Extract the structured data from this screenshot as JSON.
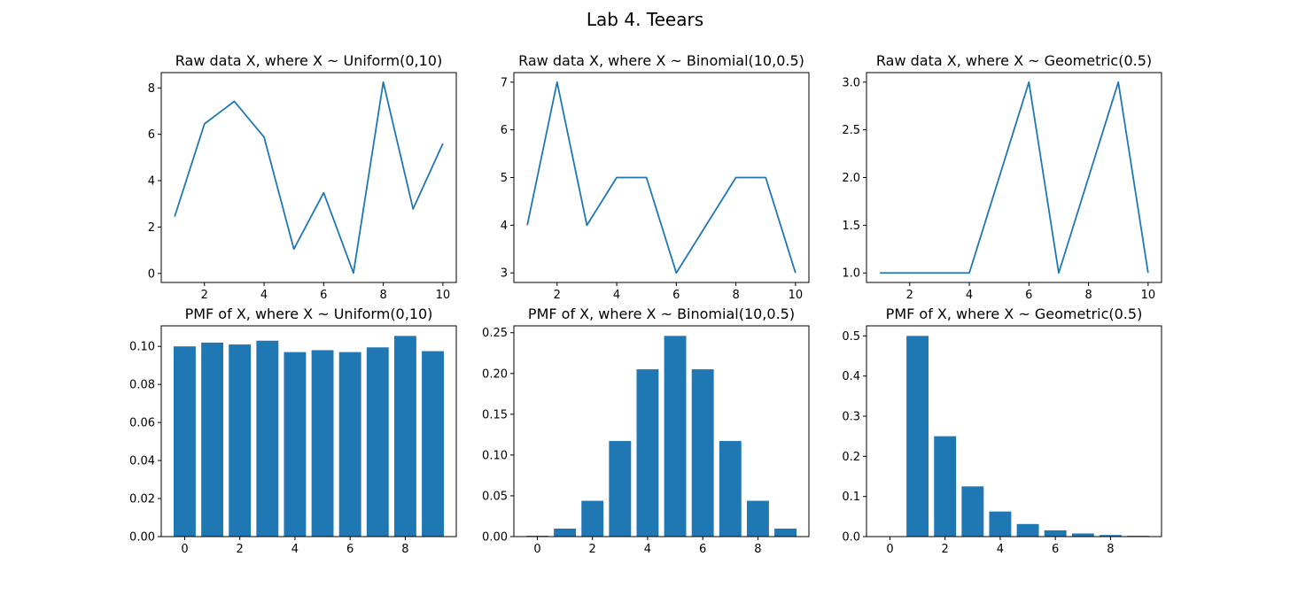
{
  "figure": {
    "suptitle": "Lab 4. Teears"
  },
  "colors": {
    "series": "#1f77b4",
    "axis": "#000000",
    "background": "#ffffff"
  },
  "chart_data": [
    {
      "type": "line",
      "title": "Raw data X, where X ~ Uniform(0,10)",
      "x": [
        1,
        2,
        3,
        4,
        5,
        6,
        7,
        8,
        9,
        10
      ],
      "y": [
        2.45,
        6.45,
        7.42,
        5.88,
        1.05,
        3.48,
        0.02,
        8.25,
        2.78,
        5.6
      ],
      "xlim": [
        0.55,
        10.45
      ],
      "ylim": [
        -0.39,
        8.66
      ],
      "xticks": [
        2,
        4,
        6,
        8,
        10
      ],
      "xtick_labels": [
        "2",
        "4",
        "6",
        "8",
        "10"
      ],
      "yticks": [
        0,
        2,
        4,
        6,
        8
      ],
      "ytick_labels": [
        "0",
        "2",
        "4",
        "6",
        "8"
      ],
      "xlabel": "",
      "ylabel": "",
      "grid": false
    },
    {
      "type": "line",
      "title": "Raw data X, where X ~ Binomial(10,0.5)",
      "x": [
        1,
        2,
        3,
        4,
        5,
        6,
        7,
        8,
        9,
        10
      ],
      "y": [
        4,
        7,
        4,
        5,
        5,
        3,
        4,
        5,
        5,
        3
      ],
      "xlim": [
        0.55,
        10.45
      ],
      "ylim": [
        2.8,
        7.2
      ],
      "xticks": [
        2,
        4,
        6,
        8,
        10
      ],
      "xtick_labels": [
        "2",
        "4",
        "6",
        "8",
        "10"
      ],
      "yticks": [
        3,
        4,
        5,
        6,
        7
      ],
      "ytick_labels": [
        "3",
        "4",
        "5",
        "6",
        "7"
      ],
      "xlabel": "",
      "ylabel": "",
      "grid": false
    },
    {
      "type": "line",
      "title": "Raw data X, where X ~ Geometric(0.5)",
      "x": [
        1,
        2,
        3,
        4,
        5,
        6,
        7,
        8,
        9,
        10
      ],
      "y": [
        1,
        1,
        1,
        1,
        2,
        3,
        1,
        2,
        3,
        1
      ],
      "xlim": [
        0.55,
        10.45
      ],
      "ylim": [
        0.9,
        3.1
      ],
      "xticks": [
        2,
        4,
        6,
        8,
        10
      ],
      "xtick_labels": [
        "2",
        "4",
        "6",
        "8",
        "10"
      ],
      "yticks": [
        1.0,
        1.5,
        2.0,
        2.5,
        3.0
      ],
      "ytick_labels": [
        "1.0",
        "1.5",
        "2.0",
        "2.5",
        "3.0"
      ],
      "xlabel": "",
      "ylabel": "",
      "grid": false
    },
    {
      "type": "bar",
      "title": "PMF of X, where X ~ Uniform(0,10)",
      "categories": [
        0,
        1,
        2,
        3,
        4,
        5,
        6,
        7,
        8,
        9
      ],
      "values": [
        0.1,
        0.102,
        0.101,
        0.103,
        0.097,
        0.098,
        0.097,
        0.0995,
        0.1055,
        0.0975
      ],
      "xlim": [
        -0.85,
        9.85
      ],
      "ylim": [
        0,
        0.1108
      ],
      "xticks": [
        0,
        2,
        4,
        6,
        8
      ],
      "xtick_labels": [
        "0",
        "2",
        "4",
        "6",
        "8"
      ],
      "yticks": [
        0,
        0.02,
        0.04,
        0.06,
        0.08,
        0.1
      ],
      "ytick_labels": [
        "0.00",
        "0.02",
        "0.04",
        "0.06",
        "0.08",
        "0.10"
      ],
      "xlabel": "",
      "ylabel": "",
      "grid": false
    },
    {
      "type": "bar",
      "title": "PMF of X, where X ~ Binomial(10,0.5)",
      "categories": [
        0,
        1,
        2,
        3,
        4,
        5,
        6,
        7,
        8,
        9
      ],
      "values": [
        0.001,
        0.0098,
        0.0439,
        0.1172,
        0.2051,
        0.2461,
        0.2051,
        0.1172,
        0.0439,
        0.0098
      ],
      "xlim": [
        -0.85,
        9.85
      ],
      "ylim": [
        0,
        0.2584
      ],
      "xticks": [
        0,
        2,
        4,
        6,
        8
      ],
      "xtick_labels": [
        "0",
        "2",
        "4",
        "6",
        "8"
      ],
      "yticks": [
        0,
        0.05,
        0.1,
        0.15,
        0.2,
        0.25
      ],
      "ytick_labels": [
        "0.00",
        "0.05",
        "0.10",
        "0.15",
        "0.20",
        "0.25"
      ],
      "xlabel": "",
      "ylabel": "",
      "grid": false
    },
    {
      "type": "bar",
      "title": "PMF of X, where X ~ Geometric(0.5)",
      "categories": [
        0,
        1,
        2,
        3,
        4,
        5,
        6,
        7,
        8,
        9
      ],
      "values": [
        0,
        0.5,
        0.25,
        0.125,
        0.0625,
        0.0313,
        0.0156,
        0.0078,
        0.0039,
        0.002
      ],
      "xlim": [
        -0.85,
        9.85
      ],
      "ylim": [
        0,
        0.525
      ],
      "xticks": [
        0,
        2,
        4,
        6,
        8
      ],
      "xtick_labels": [
        "0",
        "2",
        "4",
        "6",
        "8"
      ],
      "yticks": [
        0,
        0.1,
        0.2,
        0.3,
        0.4,
        0.5
      ],
      "ytick_labels": [
        "0.0",
        "0.1",
        "0.2",
        "0.3",
        "0.4",
        "0.5"
      ],
      "xlabel": "",
      "ylabel": "",
      "grid": false
    }
  ]
}
